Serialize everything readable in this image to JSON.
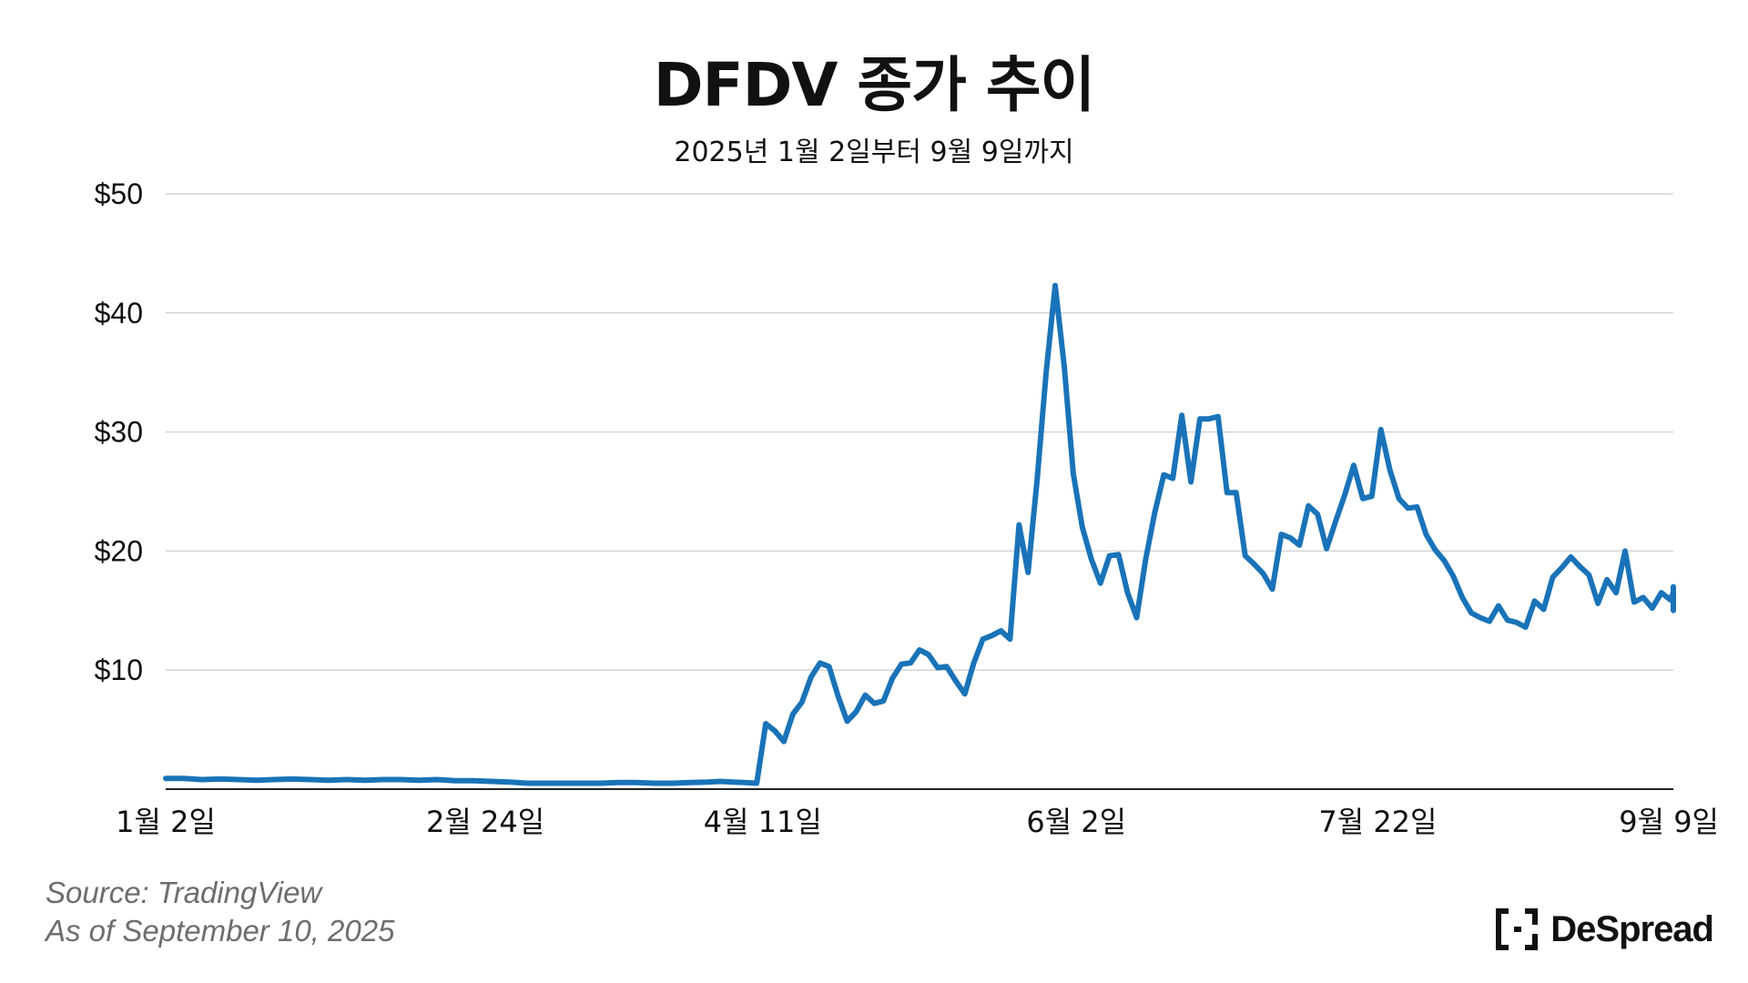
{
  "chart_data": {
    "type": "line",
    "title": "DFDV 종가 추이",
    "subtitle": "2025년 1월 2일부터 9월 9일까지",
    "ylim": [
      0,
      50
    ],
    "yticks": [
      10,
      20,
      30,
      40,
      50
    ],
    "ytick_labels": [
      "$10",
      "$20",
      "$30",
      "$40",
      "$50"
    ],
    "xlim": [
      0,
      250
    ],
    "xticks": [
      {
        "x": 0,
        "label": "1월 2일"
      },
      {
        "x": 53,
        "label": "2월 24일"
      },
      {
        "x": 99,
        "label": "4월 11일"
      },
      {
        "x": 151,
        "label": "6월 2일"
      },
      {
        "x": 201,
        "label": "7월 22일"
      },
      {
        "x": 250,
        "label": "9월 9일"
      }
    ],
    "grid": "horizontal",
    "line_color": "#1a73b8",
    "series": [
      {
        "values": [
          [
            0,
            0.9
          ],
          [
            3,
            0.9
          ],
          [
            6,
            0.8
          ],
          [
            9,
            0.85
          ],
          [
            12,
            0.8
          ],
          [
            15,
            0.75
          ],
          [
            18,
            0.8
          ],
          [
            21,
            0.85
          ],
          [
            24,
            0.8
          ],
          [
            27,
            0.75
          ],
          [
            30,
            0.8
          ],
          [
            33,
            0.75
          ],
          [
            36,
            0.8
          ],
          [
            39,
            0.8
          ],
          [
            42,
            0.75
          ],
          [
            45,
            0.8
          ],
          [
            48,
            0.7
          ],
          [
            51,
            0.7
          ],
          [
            54,
            0.65
          ],
          [
            57,
            0.6
          ],
          [
            60,
            0.5
          ],
          [
            63,
            0.5
          ],
          [
            66,
            0.5
          ],
          [
            69,
            0.5
          ],
          [
            72,
            0.5
          ],
          [
            75,
            0.55
          ],
          [
            78,
            0.55
          ],
          [
            81,
            0.5
          ],
          [
            84,
            0.5
          ],
          [
            87,
            0.55
          ],
          [
            90,
            0.6
          ],
          [
            92,
            0.65
          ],
          [
            94,
            0.6
          ],
          [
            96,
            0.55
          ],
          [
            98,
            0.5
          ],
          [
            99.5,
            5.5
          ],
          [
            101,
            4.9
          ],
          [
            102.5,
            4.0
          ],
          [
            104,
            6.3
          ],
          [
            105.5,
            7.3
          ],
          [
            107,
            9.4
          ],
          [
            108.5,
            10.6
          ],
          [
            110,
            10.3
          ],
          [
            111.5,
            7.8
          ],
          [
            113,
            5.7
          ],
          [
            114.5,
            6.5
          ],
          [
            116,
            7.9
          ],
          [
            117.5,
            7.2
          ],
          [
            119,
            7.4
          ],
          [
            120.5,
            9.3
          ],
          [
            122,
            10.5
          ],
          [
            123.5,
            10.6
          ],
          [
            125,
            11.7
          ],
          [
            126.5,
            11.3
          ],
          [
            128,
            10.2
          ],
          [
            129.5,
            10.3
          ],
          [
            131,
            9.1
          ],
          [
            132.5,
            8.0
          ],
          [
            134,
            10.6
          ],
          [
            135.5,
            12.6
          ],
          [
            137,
            12.9
          ],
          [
            138.5,
            13.3
          ],
          [
            140,
            12.6
          ],
          [
            141.5,
            22.2
          ],
          [
            143,
            18.2
          ],
          [
            144.5,
            26.0
          ],
          [
            146,
            35.0
          ],
          [
            147.5,
            42.3
          ],
          [
            149,
            35.5
          ],
          [
            150.5,
            26.5
          ],
          [
            152,
            22.0
          ],
          [
            153.5,
            19.3
          ],
          [
            155,
            17.3
          ],
          [
            156.5,
            19.6
          ],
          [
            158,
            19.7
          ],
          [
            159.5,
            16.5
          ],
          [
            161,
            14.4
          ],
          [
            162.5,
            19.3
          ],
          [
            164,
            23.2
          ],
          [
            165.5,
            26.4
          ],
          [
            167,
            26.1
          ],
          [
            168.5,
            31.4
          ],
          [
            170,
            25.8
          ],
          [
            171.5,
            31.1
          ],
          [
            173,
            31.1
          ],
          [
            174.5,
            31.3
          ],
          [
            176,
            24.9
          ],
          [
            177.5,
            24.9
          ],
          [
            179,
            19.6
          ],
          [
            180.5,
            18.9
          ],
          [
            182,
            18.1
          ],
          [
            183.5,
            16.8
          ],
          [
            185,
            21.4
          ],
          [
            186.5,
            21.1
          ],
          [
            188,
            20.5
          ],
          [
            189.5,
            23.8
          ],
          [
            191,
            23.1
          ],
          [
            192.5,
            20.2
          ],
          [
            194,
            22.5
          ],
          [
            195.5,
            24.7
          ],
          [
            197,
            27.2
          ],
          [
            198.5,
            24.4
          ],
          [
            200,
            24.6
          ],
          [
            201.5,
            30.2
          ],
          [
            203,
            26.8
          ],
          [
            204.5,
            24.4
          ],
          [
            206,
            23.6
          ],
          [
            207.5,
            23.7
          ],
          [
            209,
            21.4
          ],
          [
            210.5,
            20.1
          ],
          [
            212,
            19.2
          ],
          [
            213.5,
            17.9
          ],
          [
            215,
            16.1
          ],
          [
            216.5,
            14.8
          ],
          [
            218,
            14.4
          ],
          [
            219.5,
            14.1
          ],
          [
            221,
            15.4
          ],
          [
            222.5,
            14.2
          ],
          [
            224,
            14.0
          ],
          [
            225.5,
            13.6
          ],
          [
            227,
            15.8
          ],
          [
            228.5,
            15.1
          ],
          [
            230,
            17.8
          ],
          [
            231.5,
            18.6
          ],
          [
            233,
            19.5
          ],
          [
            234.5,
            18.7
          ],
          [
            236,
            18.0
          ],
          [
            237.5,
            15.6
          ],
          [
            239,
            17.6
          ],
          [
            240.5,
            16.5
          ],
          [
            242,
            20.0
          ],
          [
            243.5,
            15.7
          ],
          [
            245,
            16.1
          ],
          [
            246.5,
            15.2
          ],
          [
            248,
            16.5
          ],
          [
            249.5,
            15.9
          ],
          [
            251,
            16.5
          ],
          [
            252.5,
            16.5
          ],
          [
            254,
            15.2
          ],
          [
            255.5,
            15.0
          ],
          [
            257,
            15.0
          ],
          [
            258.5,
            17.0
          ]
        ]
      }
    ]
  },
  "footer": {
    "source": "Source: TradingView",
    "as_of": "As of September 10, 2025",
    "brand": "DeSpread"
  }
}
